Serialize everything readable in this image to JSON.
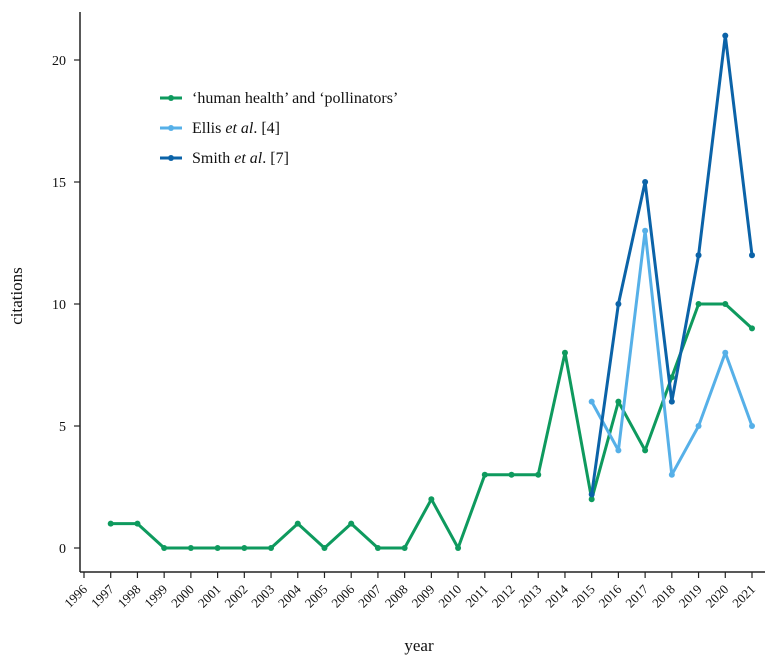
{
  "chart_data": {
    "type": "line",
    "title": "",
    "xlabel": "year",
    "ylabel": "citations",
    "xlim": [
      1996,
      2021
    ],
    "ylim": [
      -1,
      22
    ],
    "x_ticks": [
      "1996",
      "1997",
      "1998",
      "1999",
      "2000",
      "2001",
      "2002",
      "2003",
      "2004",
      "2005",
      "2006",
      "2007",
      "2008",
      "2009",
      "2010",
      "2011",
      "2012",
      "2013",
      "2014",
      "2015",
      "2016",
      "2017",
      "2018",
      "2019",
      "2020",
      "2021"
    ],
    "y_ticks": [
      "0",
      "5",
      "10",
      "15",
      "20"
    ],
    "grid": false,
    "legend_position": "top-left",
    "series": [
      {
        "name": "‘human health’ and ‘pollinators’",
        "color": "#0e9a5e",
        "x": [
          1997,
          1998,
          1999,
          2000,
          2001,
          2002,
          2003,
          2004,
          2005,
          2006,
          2007,
          2008,
          2009,
          2010,
          2011,
          2012,
          2013,
          2014,
          2015,
          2016,
          2017,
          2018,
          2019,
          2020,
          2021
        ],
        "values": [
          1,
          1,
          0,
          0,
          0,
          0,
          0,
          1,
          0,
          1,
          0,
          0,
          2,
          0,
          3,
          3,
          3,
          8,
          2,
          6,
          4,
          7,
          10,
          10,
          9
        ]
      },
      {
        "name_parts": [
          "Ellis ",
          "et al",
          ". [4]"
        ],
        "color": "#56b0e8",
        "x": [
          2015,
          2016,
          2017,
          2018,
          2019,
          2020,
          2021
        ],
        "values": [
          6,
          4,
          13,
          3,
          5,
          8,
          5
        ]
      },
      {
        "name_parts": [
          "Smith ",
          "et al",
          ". [7]"
        ],
        "color": "#0b63a8",
        "x": [
          2015,
          2016,
          2017,
          2018,
          2019,
          2020,
          2021
        ],
        "values": [
          2.2,
          10,
          15,
          6,
          12,
          21,
          12
        ]
      }
    ]
  }
}
